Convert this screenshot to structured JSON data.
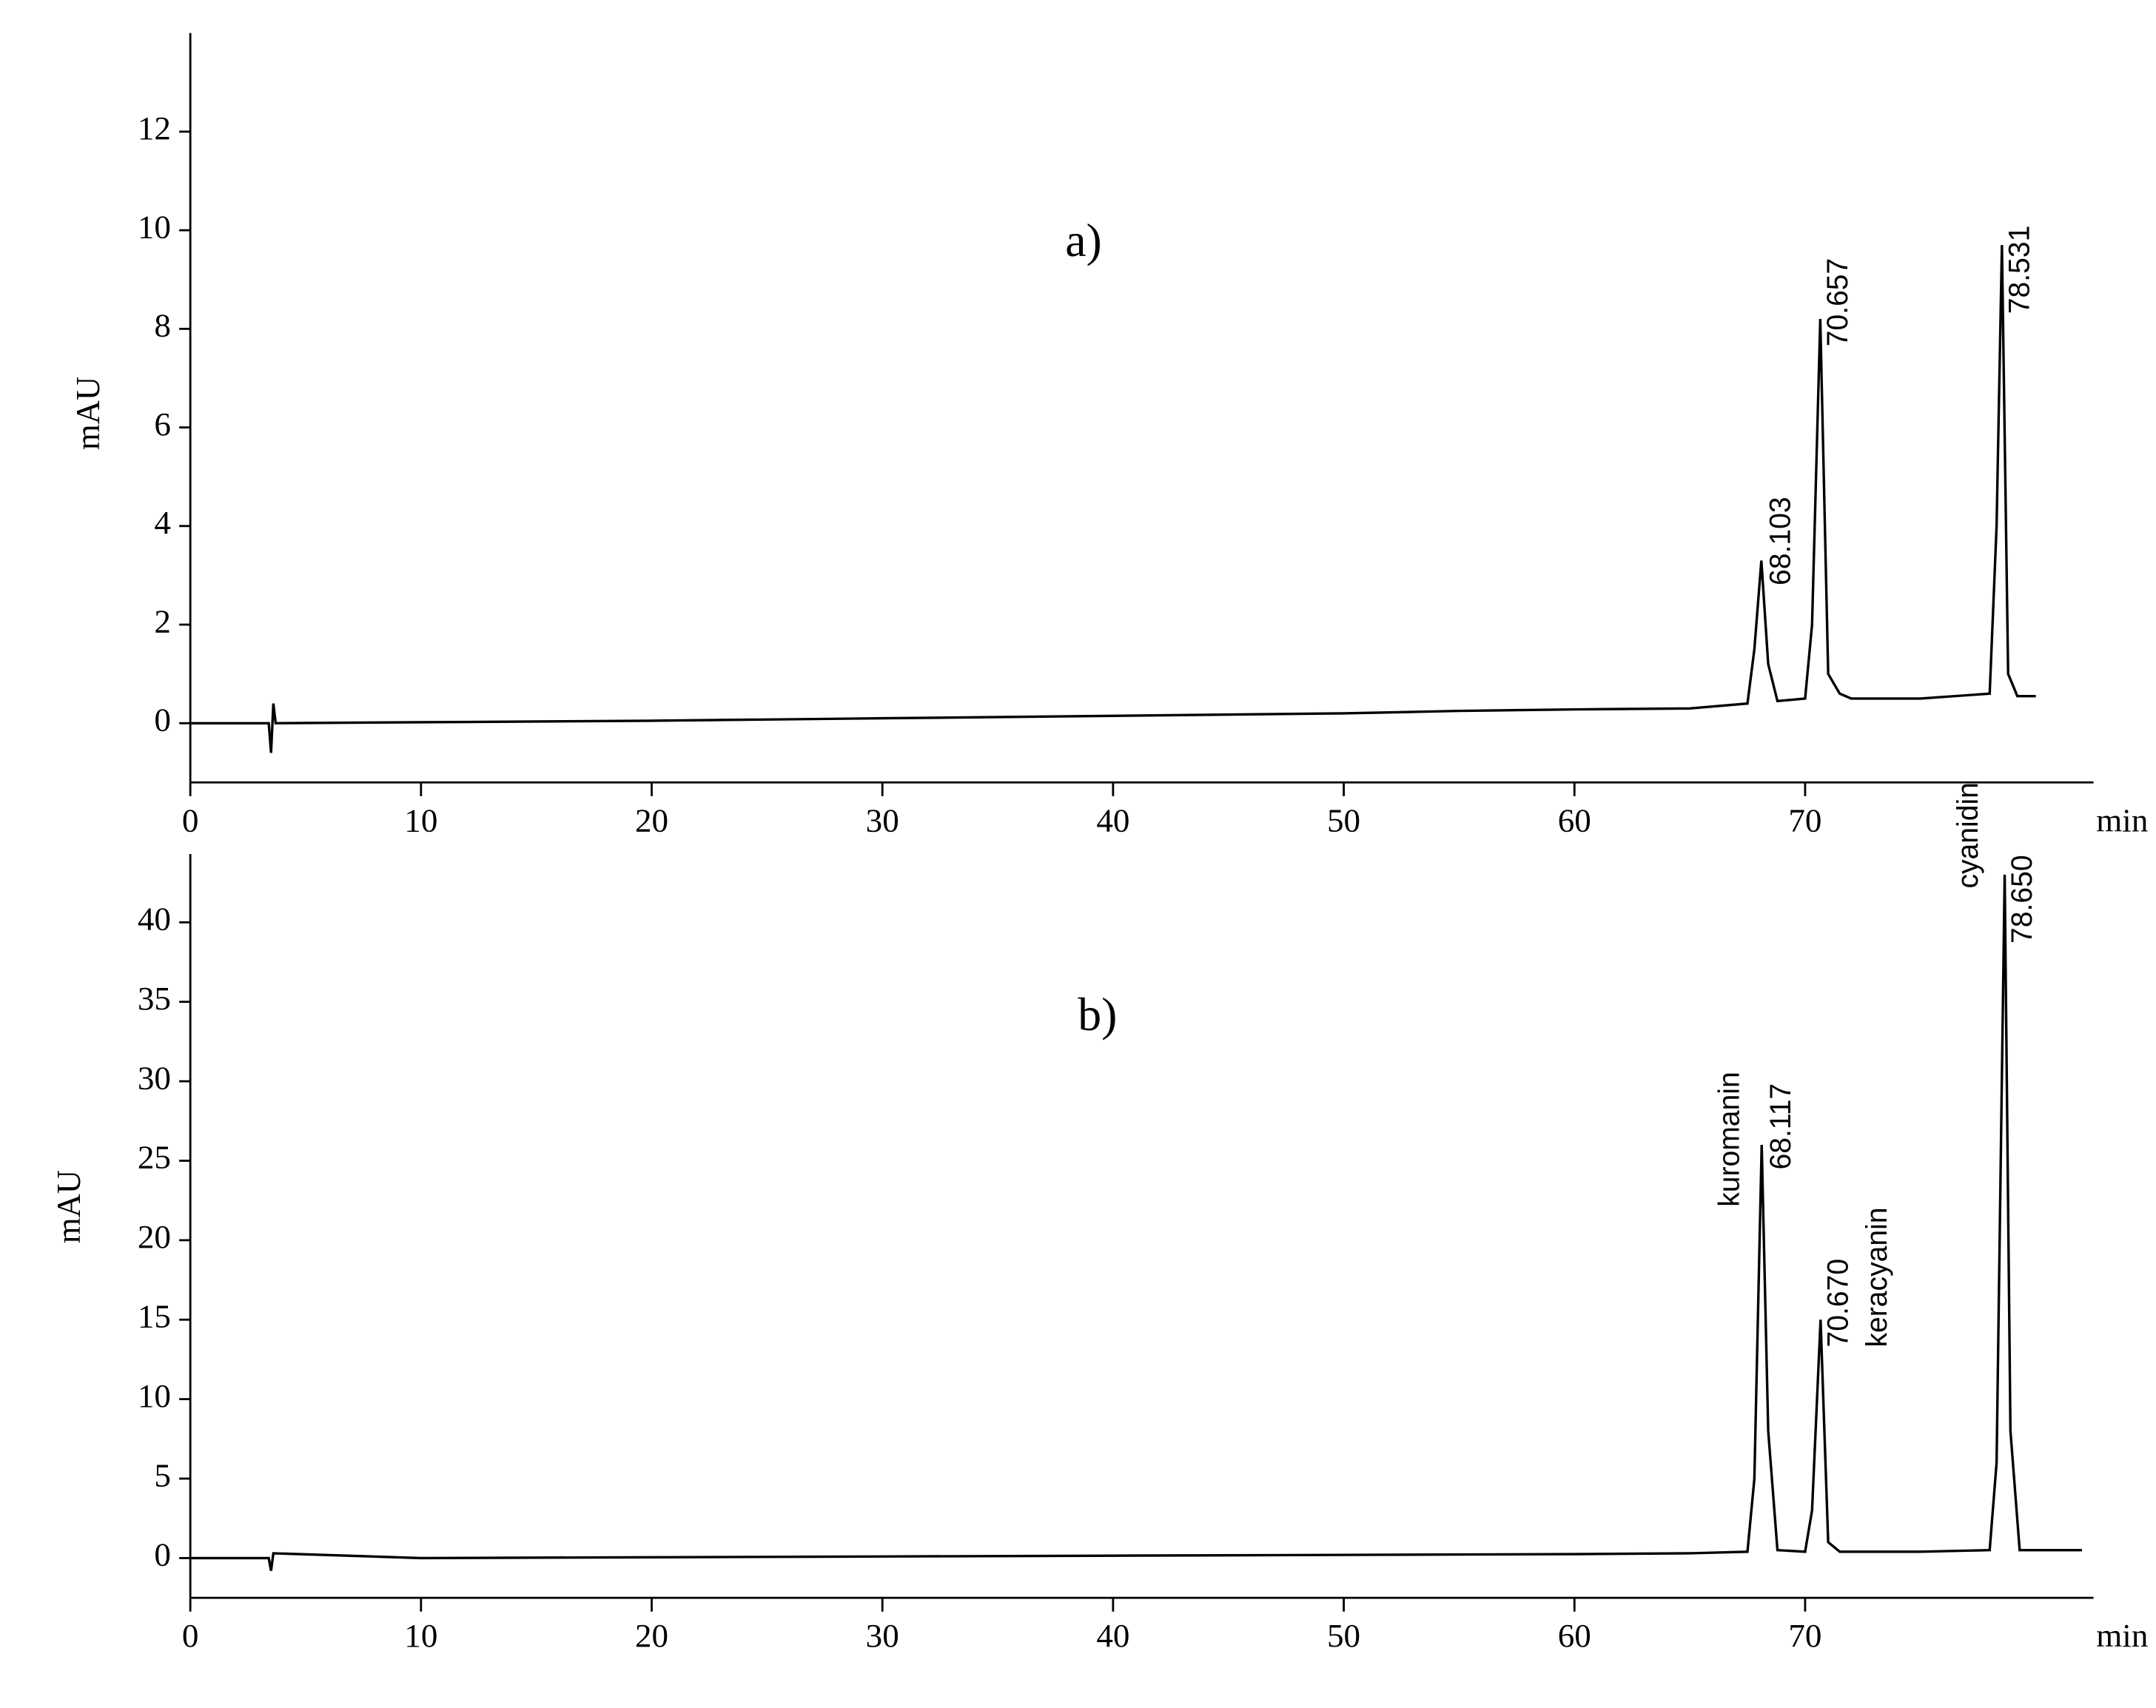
{
  "chart_data": [
    {
      "type": "line",
      "panel_label": "a)",
      "ylabel": "mAU",
      "xlabel": "min",
      "color": "#000000",
      "x": [
        0,
        3.4,
        3.5,
        3.6,
        3.7,
        10,
        20,
        30,
        40,
        50,
        55,
        60,
        65,
        67.5,
        67.8,
        68.103,
        68.4,
        68.8,
        70,
        70.3,
        70.657,
        71,
        71.5,
        72,
        75,
        78,
        78.3,
        78.531,
        78.8,
        79.2,
        80
      ],
      "values": [
        0,
        0,
        -0.6,
        0.4,
        0,
        0.02,
        0.05,
        0.1,
        0.15,
        0.2,
        0.25,
        0.28,
        0.3,
        0.4,
        1.5,
        3.3,
        1.2,
        0.45,
        0.5,
        2,
        8.2,
        1,
        0.6,
        0.5,
        0.5,
        0.6,
        4,
        9.7,
        1,
        0.55,
        0.55
      ],
      "peaks": [
        68.103,
        70.657,
        78.531
      ],
      "xlim": [
        0,
        82.5
      ],
      "xticks": [
        0,
        10,
        20,
        30,
        40,
        50,
        60,
        70
      ],
      "ylim": [
        -1.2,
        14
      ],
      "yticks": [
        0,
        2,
        4,
        6,
        8,
        10,
        12
      ]
    },
    {
      "type": "line",
      "panel_label": "b)",
      "ylabel": "mAU",
      "xlabel": "min",
      "color": "#000000",
      "x": [
        0,
        3.4,
        3.5,
        3.6,
        10,
        20,
        30,
        40,
        50,
        60,
        65,
        67.5,
        67.8,
        68.117,
        68.4,
        68.8,
        70,
        70.3,
        70.67,
        71,
        71.5,
        75,
        78,
        78.3,
        78.65,
        78.9,
        79.3,
        82
      ],
      "values": [
        0,
        0,
        -0.8,
        0.3,
        0,
        0.05,
        0.1,
        0.15,
        0.2,
        0.25,
        0.3,
        0.4,
        5,
        26,
        8,
        0.5,
        0.4,
        3,
        15,
        1,
        0.4,
        0.4,
        0.5,
        6,
        43,
        8,
        0.5,
        0.5
      ],
      "peaks": [
        68.117,
        70.67,
        78.65
      ],
      "peak_labels": [
        "68.117",
        "70.670",
        "78.650"
      ],
      "peak_names": [
        "kuromanin",
        "keracyanin",
        "cyanidin"
      ],
      "xlim": [
        0,
        82.5
      ],
      "xticks": [
        0,
        10,
        20,
        30,
        40,
        50,
        60,
        70
      ],
      "ylim": [
        -2.5,
        44.3
      ],
      "yticks": [
        0,
        5,
        10,
        15,
        20,
        25,
        30,
        35,
        40
      ]
    }
  ]
}
